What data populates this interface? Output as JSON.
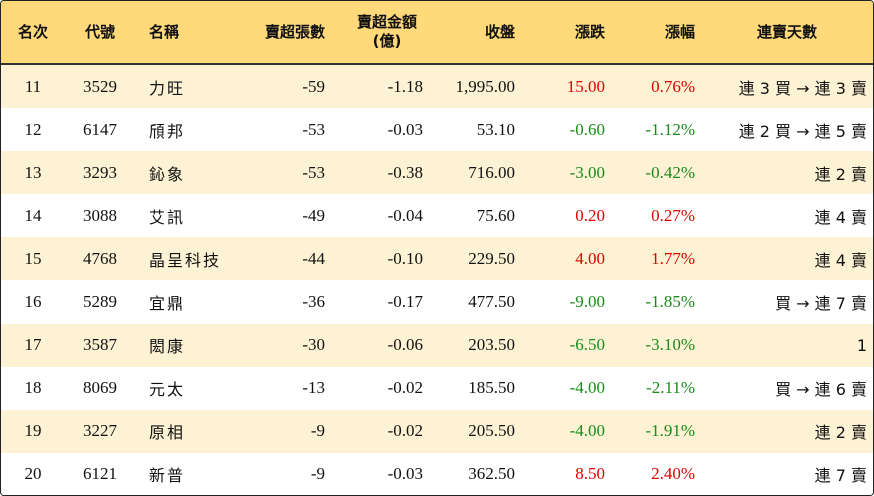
{
  "headers": [
    "名次",
    "代號",
    "名稱",
    "賣超張數",
    "賣超金額\n(億)",
    "收盤",
    "漲跌",
    "漲幅",
    "連賣天數"
  ],
  "colors": {
    "header_bg": "#ffd97a",
    "stripe_bg": "#fdf2d3",
    "up": "#e00000",
    "down": "#1a8a1a"
  },
  "rows": [
    {
      "rank": "11",
      "code": "3529",
      "name": "力旺",
      "net_sell_lots": "-59",
      "net_sell_amount": "-1.18",
      "close": "1,995.00",
      "change": "15.00",
      "pct": "0.76%",
      "streak": "連 3 買 → 連 3 賣",
      "dir": "up"
    },
    {
      "rank": "12",
      "code": "6147",
      "name": "頎邦",
      "net_sell_lots": "-53",
      "net_sell_amount": "-0.03",
      "close": "53.10",
      "change": "-0.60",
      "pct": "-1.12%",
      "streak": "連 2 買 → 連 5 賣",
      "dir": "down"
    },
    {
      "rank": "13",
      "code": "3293",
      "name": "鈊象",
      "net_sell_lots": "-53",
      "net_sell_amount": "-0.38",
      "close": "716.00",
      "change": "-3.00",
      "pct": "-0.42%",
      "streak": "連 2 賣",
      "dir": "down"
    },
    {
      "rank": "14",
      "code": "3088",
      "name": "艾訊",
      "net_sell_lots": "-49",
      "net_sell_amount": "-0.04",
      "close": "75.60",
      "change": "0.20",
      "pct": "0.27%",
      "streak": "連 4 賣",
      "dir": "up"
    },
    {
      "rank": "15",
      "code": "4768",
      "name": "晶呈科技",
      "net_sell_lots": "-44",
      "net_sell_amount": "-0.10",
      "close": "229.50",
      "change": "4.00",
      "pct": "1.77%",
      "streak": "連 4 賣",
      "dir": "up"
    },
    {
      "rank": "16",
      "code": "5289",
      "name": "宜鼎",
      "net_sell_lots": "-36",
      "net_sell_amount": "-0.17",
      "close": "477.50",
      "change": "-9.00",
      "pct": "-1.85%",
      "streak": "買 → 連 7 賣",
      "dir": "down"
    },
    {
      "rank": "17",
      "code": "3587",
      "name": "閎康",
      "net_sell_lots": "-30",
      "net_sell_amount": "-0.06",
      "close": "203.50",
      "change": "-6.50",
      "pct": "-3.10%",
      "streak": "1",
      "dir": "down"
    },
    {
      "rank": "18",
      "code": "8069",
      "name": "元太",
      "net_sell_lots": "-13",
      "net_sell_amount": "-0.02",
      "close": "185.50",
      "change": "-4.00",
      "pct": "-2.11%",
      "streak": "買 → 連 6 賣",
      "dir": "down"
    },
    {
      "rank": "19",
      "code": "3227",
      "name": "原相",
      "net_sell_lots": "-9",
      "net_sell_amount": "-0.02",
      "close": "205.50",
      "change": "-4.00",
      "pct": "-1.91%",
      "streak": "連 2 賣",
      "dir": "down"
    },
    {
      "rank": "20",
      "code": "6121",
      "name": "新普",
      "net_sell_lots": "-9",
      "net_sell_amount": "-0.03",
      "close": "362.50",
      "change": "8.50",
      "pct": "2.40%",
      "streak": "連 7 賣",
      "dir": "up"
    }
  ]
}
